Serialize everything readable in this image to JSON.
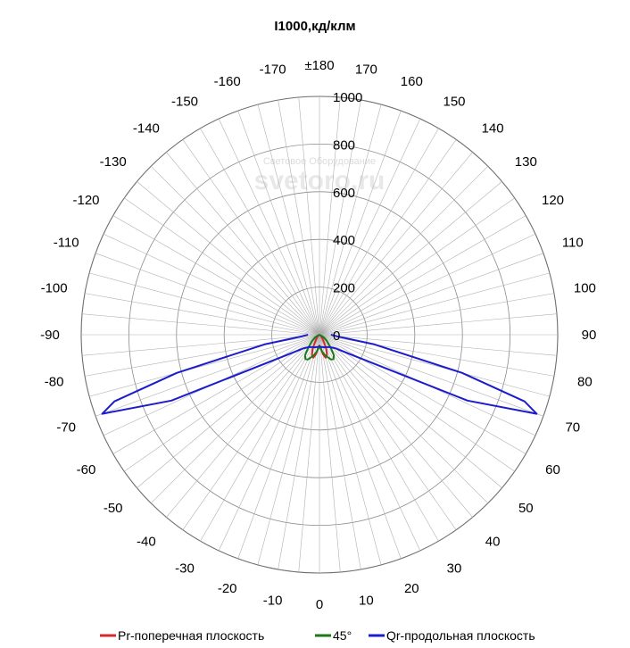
{
  "chart_data": {
    "type": "polar-line",
    "title": "I1000,кд/клм",
    "radial_range": [
      0,
      1000
    ],
    "radial_ticks": [
      0,
      200,
      400,
      600,
      800,
      1000
    ],
    "angle_labels": [
      "±180",
      "170",
      "160",
      "150",
      "140",
      "130",
      "120",
      "110",
      "100",
      "90",
      "80",
      "70",
      "60",
      "50",
      "40",
      "30",
      "20",
      "10",
      "0",
      "-10",
      "-20",
      "-30",
      "-40",
      "-50",
      "-60",
      "-70",
      "-80",
      "-90",
      "-100",
      "-110",
      "-120",
      "-130",
      "-140",
      "-150",
      "-160",
      "-170"
    ],
    "watermark": [
      "Световое Оборудование",
      "svetoro.ru"
    ],
    "series": [
      {
        "name": "Pr-поперечная плоскость",
        "color": "#d42a2a",
        "points": [
          [
            -90,
            0
          ],
          [
            -60,
            5
          ],
          [
            -40,
            18
          ],
          [
            -30,
            40
          ],
          [
            -25,
            70
          ],
          [
            -20,
            92
          ],
          [
            -15,
            100
          ],
          [
            -10,
            82
          ],
          [
            -5,
            55
          ],
          [
            0,
            45
          ],
          [
            5,
            55
          ],
          [
            10,
            82
          ],
          [
            15,
            100
          ],
          [
            20,
            92
          ],
          [
            25,
            70
          ],
          [
            30,
            40
          ],
          [
            40,
            18
          ],
          [
            60,
            5
          ],
          [
            90,
            0
          ]
        ]
      },
      {
        "name": "45°",
        "color": "#1a7a1a",
        "points": [
          [
            -90,
            0
          ],
          [
            -60,
            20
          ],
          [
            -50,
            40
          ],
          [
            -40,
            75
          ],
          [
            -35,
            105
          ],
          [
            -30,
            118
          ],
          [
            -25,
            115
          ],
          [
            -20,
            100
          ],
          [
            -15,
            88
          ],
          [
            -10,
            74
          ],
          [
            -5,
            58
          ],
          [
            0,
            48
          ],
          [
            5,
            58
          ],
          [
            10,
            74
          ],
          [
            15,
            88
          ],
          [
            20,
            100
          ],
          [
            25,
            115
          ],
          [
            30,
            118
          ],
          [
            35,
            105
          ],
          [
            40,
            75
          ],
          [
            50,
            40
          ],
          [
            60,
            20
          ],
          [
            90,
            0
          ]
        ]
      },
      {
        "name": "Qr-продольная плоскость",
        "color": "#1c1ccc",
        "points": [
          [
            -90,
            48
          ],
          [
            -85,
            72
          ],
          [
            -80,
            235
          ],
          [
            -75,
            620
          ],
          [
            -72,
            905
          ],
          [
            -70,
            970
          ],
          [
            -66,
            680
          ],
          [
            -58,
            160
          ],
          [
            -50,
            90
          ],
          [
            -40,
            68
          ],
          [
            -30,
            60
          ],
          [
            -20,
            56
          ],
          [
            -10,
            52
          ],
          [
            0,
            50
          ],
          [
            10,
            52
          ],
          [
            20,
            56
          ],
          [
            30,
            60
          ],
          [
            40,
            68
          ],
          [
            50,
            90
          ],
          [
            58,
            160
          ],
          [
            66,
            680
          ],
          [
            70,
            970
          ],
          [
            72,
            905
          ],
          [
            75,
            620
          ],
          [
            80,
            235
          ],
          [
            85,
            72
          ],
          [
            90,
            48
          ]
        ]
      }
    ],
    "legend_position": "bottom"
  }
}
